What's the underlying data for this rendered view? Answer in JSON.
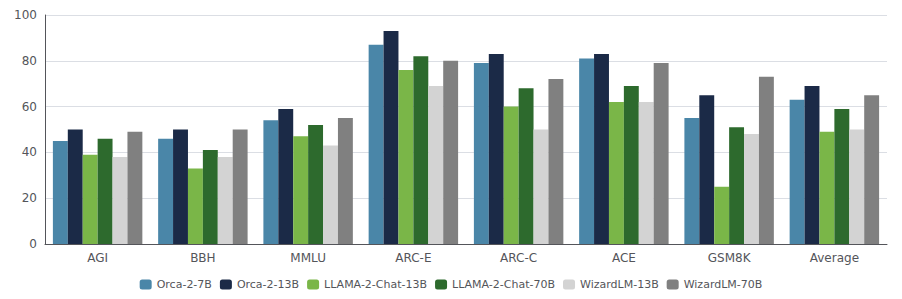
{
  "chart_data": {
    "type": "bar",
    "categories": [
      "AGI",
      "BBH",
      "MMLU",
      "ARC-E",
      "ARC-C",
      "ACE",
      "GSM8K",
      "Average"
    ],
    "series": [
      {
        "name": "Orca-2-7B",
        "color": "#4a86a8",
        "values": [
          45,
          46,
          54,
          87,
          79,
          81,
          55,
          63
        ]
      },
      {
        "name": "Orca-2-13B",
        "color": "#1b2a47",
        "values": [
          50,
          50,
          59,
          93,
          83,
          83,
          65,
          69
        ]
      },
      {
        "name": "LLAMA-2-Chat-13B",
        "color": "#7ab648",
        "values": [
          39,
          33,
          47,
          76,
          60,
          62,
          25,
          49
        ]
      },
      {
        "name": "LLAMA-2-Chat-70B",
        "color": "#2d6a2d",
        "values": [
          46,
          41,
          52,
          82,
          68,
          69,
          51,
          59
        ]
      },
      {
        "name": "WizardLM-13B",
        "color": "#d3d3d3",
        "values": [
          38,
          38,
          43,
          69,
          50,
          62,
          48,
          50
        ]
      },
      {
        "name": "WizardLM-70B",
        "color": "#808080",
        "values": [
          49,
          50,
          55,
          80,
          72,
          79,
          73,
          65
        ]
      }
    ],
    "ylim": [
      0,
      100
    ],
    "yticks": [
      0,
      20,
      40,
      60,
      80,
      100
    ],
    "grid": true,
    "legend": "bottom"
  }
}
